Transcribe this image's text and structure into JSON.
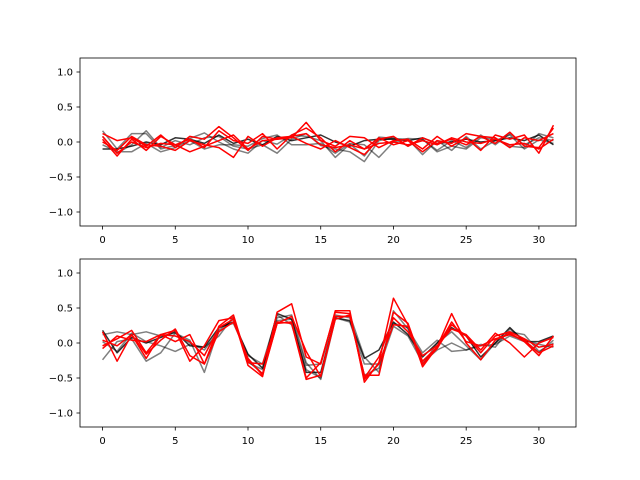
{
  "chart_data": [
    {
      "type": "line",
      "title": "",
      "xlabel": "",
      "ylabel": "",
      "xlim": [
        -1.55,
        32.55
      ],
      "ylim": [
        -1.2,
        1.2
      ],
      "xticks": [
        0,
        5,
        10,
        15,
        20,
        25,
        30
      ],
      "yticks": [
        -1.0,
        -0.5,
        0.0,
        0.5,
        1.0
      ],
      "xtick_labels": [
        "0",
        "5",
        "10",
        "15",
        "20",
        "25",
        "30"
      ],
      "ytick_labels": [
        "−1.0",
        "−0.5",
        "0.0",
        "0.5",
        "1.0"
      ],
      "grid": false,
      "x": [
        0,
        1,
        2,
        3,
        4,
        5,
        6,
        7,
        8,
        9,
        10,
        11,
        12,
        13,
        14,
        15,
        16,
        17,
        18,
        19,
        20,
        21,
        22,
        23,
        24,
        25,
        26,
        27,
        28,
        29,
        30,
        31
      ],
      "series": [
        {
          "color": "#000000",
          "opacity": 0.5,
          "values": [
            0.16,
            -0.1,
            0.12,
            0.12,
            -0.1,
            -0.05,
            0.05,
            0.13,
            0.0,
            -0.1,
            -0.16,
            0.02,
            -0.03,
            0.1,
            0.08,
            0.02,
            -0.22,
            -0.03,
            -0.2,
            0.07,
            0.05,
            0.04,
            -0.18,
            0.02,
            -0.12,
            0.08,
            -0.1,
            0.02,
            0.1,
            -0.1,
            0.03,
            -0.02
          ]
        },
        {
          "color": "#000000",
          "opacity": 0.5,
          "values": [
            0.08,
            -0.16,
            -0.04,
            0.16,
            -0.08,
            0.02,
            -0.04,
            0.06,
            0.08,
            -0.06,
            -0.1,
            -0.04,
            -0.16,
            0.04,
            0.12,
            -0.05,
            -0.1,
            -0.14,
            -0.28,
            0.02,
            0.06,
            -0.06,
            0.04,
            -0.12,
            0.02,
            -0.08,
            0.1,
            -0.04,
            0.12,
            -0.04,
            0.06,
            0.02
          ]
        },
        {
          "color": "#000000",
          "opacity": 0.5,
          "values": [
            -0.04,
            -0.14,
            -0.14,
            -0.02,
            -0.14,
            -0.08,
            0.02,
            -0.1,
            -0.04,
            -0.04,
            -0.06,
            0.05,
            0.1,
            -0.04,
            -0.04,
            -0.02,
            -0.16,
            -0.02,
            -0.04,
            -0.22,
            0.0,
            0.05,
            0.04,
            -0.14,
            -0.06,
            -0.1,
            0.06,
            0.04,
            -0.06,
            -0.08,
            0.12,
            0.06
          ]
        },
        {
          "color": "#000000",
          "opacity": 0.8,
          "values": [
            -0.1,
            -0.1,
            -0.06,
            0.0,
            -0.04,
            0.06,
            0.04,
            -0.02,
            0.1,
            -0.02,
            0.04,
            -0.04,
            0.08,
            0.02,
            0.06,
            0.1,
            0.0,
            -0.06,
            0.02,
            0.04,
            0.04,
            0.02,
            0.06,
            -0.02,
            0.0,
            0.04,
            0.0,
            0.02,
            0.06,
            0.02,
            0.1,
            -0.04
          ]
        },
        {
          "color": "#ff0000",
          "opacity": 1,
          "values": [
            0.12,
            0.02,
            0.06,
            -0.06,
            0.1,
            -0.08,
            0.08,
            0.04,
            0.22,
            0.06,
            -0.12,
            0.08,
            0.04,
            0.06,
            0.28,
            0.02,
            -0.06,
            0.08,
            0.06,
            -0.08,
            0.02,
            0.04,
            -0.1,
            0.08,
            -0.06,
            0.06,
            -0.12,
            0.1,
            0.04,
            0.1,
            -0.16,
            0.24
          ]
        },
        {
          "color": "#ff0000",
          "opacity": 1,
          "values": [
            0.04,
            -0.2,
            0.04,
            -0.12,
            0.08,
            -0.04,
            0.04,
            -0.08,
            0.16,
            0.02,
            -0.02,
            0.12,
            -0.1,
            0.1,
            0.2,
            0.06,
            -0.14,
            0.02,
            -0.1,
            0.06,
            -0.04,
            0.02,
            -0.14,
            0.02,
            -0.02,
            0.12,
            0.08,
            -0.02,
            0.14,
            -0.06,
            -0.08,
            0.2
          ]
        },
        {
          "color": "#ff0000",
          "opacity": 1,
          "values": [
            0.0,
            -0.12,
            0.08,
            -0.04,
            -0.06,
            -0.12,
            0.02,
            -0.04,
            -0.08,
            -0.22,
            0.08,
            -0.06,
            0.06,
            0.08,
            -0.02,
            -0.1,
            0.02,
            -0.08,
            -0.18,
            0.04,
            0.08,
            -0.06,
            0.06,
            -0.02,
            0.04,
            -0.04,
            0.08,
            0.06,
            -0.08,
            0.06,
            0.02,
            0.12
          ]
        },
        {
          "color": "#ff0000",
          "opacity": 1,
          "values": [
            0.08,
            -0.16,
            0.0,
            -0.08,
            -0.02,
            -0.04,
            -0.14,
            -0.06,
            0.02,
            0.1,
            -0.1,
            0.02,
            0.04,
            0.08,
            0.12,
            -0.04,
            -0.08,
            -0.04,
            -0.1,
            -0.02,
            0.0,
            -0.04,
            0.02,
            -0.04,
            0.06,
            0.0,
            -0.02,
            0.04,
            -0.04,
            -0.02,
            -0.1,
            0.04
          ]
        }
      ]
    },
    {
      "type": "line",
      "title": "",
      "xlabel": "",
      "ylabel": "",
      "xlim": [
        -1.55,
        32.55
      ],
      "ylim": [
        -1.2,
        1.2
      ],
      "xticks": [
        0,
        5,
        10,
        15,
        20,
        25,
        30
      ],
      "yticks": [
        -1.0,
        -0.5,
        0.0,
        0.5,
        1.0
      ],
      "xtick_labels": [
        "0",
        "5",
        "10",
        "15",
        "20",
        "25",
        "30"
      ],
      "ytick_labels": [
        "−1.0",
        "−0.5",
        "0.0",
        "0.5",
        "1.0"
      ],
      "grid": false,
      "x": [
        0,
        1,
        2,
        3,
        4,
        5,
        6,
        7,
        8,
        9,
        10,
        11,
        12,
        13,
        14,
        15,
        16,
        17,
        18,
        19,
        20,
        21,
        22,
        23,
        24,
        25,
        26,
        27,
        28,
        29,
        30,
        31
      ],
      "series": [
        {
          "color": "#000000",
          "opacity": 0.5,
          "values": [
            0.12,
            0.16,
            0.12,
            0.16,
            0.1,
            0.14,
            0.04,
            -0.42,
            0.22,
            0.28,
            -0.18,
            -0.3,
            0.4,
            0.26,
            -0.38,
            -0.5,
            0.4,
            0.36,
            -0.46,
            -0.36,
            0.24,
            0.1,
            -0.28,
            -0.1,
            0.0,
            -0.1,
            -0.02,
            -0.06,
            0.2,
            0.04,
            -0.02,
            -0.06
          ]
        },
        {
          "color": "#000000",
          "opacity": 0.5,
          "values": [
            -0.24,
            0.02,
            0.06,
            -0.26,
            -0.14,
            0.14,
            0.0,
            -0.1,
            0.18,
            0.34,
            -0.26,
            -0.44,
            0.36,
            0.4,
            -0.28,
            -0.52,
            0.34,
            0.4,
            -0.2,
            -0.42,
            0.46,
            0.2,
            -0.14,
            0.04,
            -0.12,
            -0.1,
            -0.04,
            -0.02,
            0.1,
            0.02,
            -0.14,
            0.04
          ]
        },
        {
          "color": "#000000",
          "opacity": 0.5,
          "values": [
            0.02,
            -0.12,
            0.14,
            0.02,
            -0.04,
            -0.12,
            -0.02,
            -0.06,
            0.1,
            0.38,
            -0.28,
            -0.38,
            0.32,
            0.34,
            -0.32,
            -0.3,
            0.36,
            0.3,
            -0.3,
            -0.3,
            0.28,
            0.22,
            -0.32,
            0.0,
            0.16,
            -0.04,
            -0.24,
            0.0,
            0.16,
            0.12,
            -0.12,
            0.0
          ]
        },
        {
          "color": "#000000",
          "opacity": 0.8,
          "values": [
            0.18,
            -0.14,
            0.08,
            0.0,
            0.08,
            0.16,
            -0.04,
            -0.06,
            0.22,
            0.3,
            -0.16,
            -0.36,
            0.42,
            0.34,
            -0.42,
            -0.42,
            0.36,
            0.32,
            -0.22,
            -0.1,
            0.3,
            0.12,
            -0.2,
            0.0,
            0.22,
            0.1,
            -0.2,
            0.0,
            0.22,
            0.02,
            0.02,
            0.1
          ]
        },
        {
          "color": "#ff0000",
          "opacity": 1,
          "values": [
            0.16,
            -0.26,
            0.12,
            -0.22,
            0.12,
            0.18,
            -0.26,
            -0.04,
            0.32,
            0.36,
            -0.32,
            -0.48,
            0.44,
            0.56,
            -0.2,
            -0.3,
            0.46,
            0.46,
            -0.56,
            -0.28,
            0.64,
            0.26,
            -0.34,
            -0.06,
            0.42,
            0.0,
            -0.24,
            0.04,
            0.14,
            0.02,
            -0.18,
            0.1
          ]
        },
        {
          "color": "#ff0000",
          "opacity": 1,
          "values": [
            -0.08,
            0.1,
            0.04,
            0.02,
            0.12,
            0.02,
            0.12,
            -0.3,
            0.16,
            0.3,
            -0.22,
            -0.46,
            0.28,
            0.3,
            -0.5,
            -0.28,
            0.44,
            0.42,
            -0.5,
            -0.2,
            0.36,
            0.16,
            -0.18,
            -0.04,
            0.2,
            0.12,
            -0.1,
            0.14,
            0.0,
            -0.2,
            0.0,
            0.08
          ]
        },
        {
          "color": "#ff0000",
          "opacity": 1,
          "values": [
            0.04,
            -0.04,
            0.12,
            -0.16,
            0.04,
            0.2,
            -0.18,
            -0.3,
            0.24,
            0.4,
            -0.28,
            -0.3,
            0.3,
            0.28,
            -0.52,
            -0.46,
            0.38,
            0.38,
            -0.46,
            -0.46,
            0.44,
            0.28,
            -0.3,
            -0.08,
            0.26,
            0.1,
            -0.14,
            0.1,
            0.16,
            0.06,
            -0.06,
            -0.02
          ]
        },
        {
          "color": "#ff0000",
          "opacity": 1,
          "values": [
            -0.04,
            0.06,
            0.18,
            -0.14,
            0.12,
            0.1,
            0.02,
            -0.18,
            0.22,
            0.34,
            -0.24,
            -0.44,
            0.28,
            0.38,
            -0.12,
            -0.48,
            0.34,
            0.4,
            -0.52,
            -0.3,
            0.26,
            0.24,
            -0.26,
            -0.06,
            0.3,
            0.02,
            -0.04,
            0.06,
            0.12,
            0.04,
            -0.14,
            -0.04
          ]
        }
      ]
    }
  ]
}
